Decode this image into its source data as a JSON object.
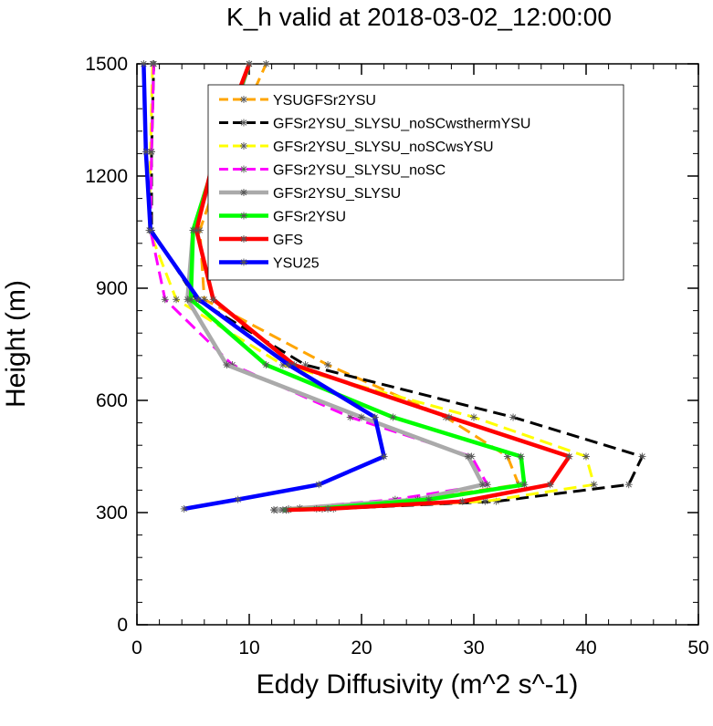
{
  "chart_data": {
    "type": "line",
    "title": "K_h valid at 2018-03-02_12:00:00",
    "xlabel": "Eddy Diffusivity (m^2 s^-1)",
    "ylabel": "Height (m)",
    "xlim": [
      0,
      50
    ],
    "ylim": [
      0,
      1500
    ],
    "x_ticks": [
      "0",
      "10",
      "20",
      "30",
      "40",
      "50"
    ],
    "y_ticks": [
      "0",
      "300",
      "600",
      "900",
      "1200",
      "1500"
    ],
    "grid": false,
    "legend_position": "top-right-inside",
    "series": [
      {
        "name": "YSUGFSr2YSU",
        "color": "#FFA500",
        "dash": "dash",
        "points": [
          [
            13.5,
            307
          ],
          [
            16.5,
            310
          ],
          [
            24,
            330
          ],
          [
            34,
            375
          ],
          [
            33,
            450
          ],
          [
            27.5,
            555
          ],
          [
            17,
            695
          ],
          [
            6,
            870
          ],
          [
            5.6,
            1055
          ],
          [
            8,
            1265
          ],
          [
            11.5,
            1500
          ]
        ]
      },
      {
        "name": "GFSr2YSU_SLYSU_noSCwsthermYSU",
        "color": "#000000",
        "dash": "dash",
        "points": [
          [
            13.3,
            307
          ],
          [
            17.5,
            310
          ],
          [
            32,
            330
          ],
          [
            43.8,
            375
          ],
          [
            45,
            450
          ],
          [
            33.5,
            555
          ],
          [
            15,
            695
          ],
          [
            5.3,
            870
          ],
          [
            1.3,
            1055
          ],
          [
            1.3,
            1265
          ],
          [
            1.5,
            1500
          ]
        ]
      },
      {
        "name": "GFSr2YSU_SLYSU_noSCwsYSU",
        "color": "#FFFF00",
        "dash": "dash",
        "points": [
          [
            12.5,
            307
          ],
          [
            16.5,
            310
          ],
          [
            31,
            330
          ],
          [
            40.7,
            375
          ],
          [
            40,
            450
          ],
          [
            30,
            555
          ],
          [
            13,
            695
          ],
          [
            3.5,
            870
          ],
          [
            1.1,
            1055
          ],
          [
            1.2,
            1265
          ],
          [
            1.4,
            1500
          ]
        ]
      },
      {
        "name": "GFSr2YSU_SLYSU_noSC",
        "color": "#FF00FF",
        "dash": "dash",
        "points": [
          [
            12.2,
            307
          ],
          [
            13.5,
            310
          ],
          [
            23,
            335
          ],
          [
            31.2,
            375
          ],
          [
            29.8,
            450
          ],
          [
            19,
            555
          ],
          [
            8.5,
            695
          ],
          [
            2.5,
            870
          ],
          [
            1.2,
            1055
          ],
          [
            1.3,
            1265
          ],
          [
            1.5,
            1500
          ]
        ]
      },
      {
        "name": "GFSr2YSU_SLYSU",
        "color": "#AAAAAA",
        "dash": "solid",
        "points": [
          [
            12.2,
            307
          ],
          [
            14.5,
            312
          ],
          [
            25,
            335
          ],
          [
            30.8,
            375
          ],
          [
            29.5,
            450
          ],
          [
            20,
            555
          ],
          [
            8,
            695
          ],
          [
            4.5,
            870
          ],
          [
            5,
            1055
          ],
          [
            7.5,
            1265
          ],
          [
            10,
            1500
          ]
        ]
      },
      {
        "name": "GFSr2YSU",
        "color": "#00FF00",
        "dash": "solid",
        "points": [
          [
            13,
            307
          ],
          [
            16,
            310
          ],
          [
            26,
            335
          ],
          [
            34.5,
            375
          ],
          [
            34.2,
            450
          ],
          [
            22.8,
            555
          ],
          [
            11.5,
            695
          ],
          [
            4.8,
            870
          ],
          [
            5,
            1055
          ],
          [
            7.2,
            1265
          ],
          [
            10,
            1500
          ]
        ]
      },
      {
        "name": "GFS",
        "color": "#FF0000",
        "dash": "solid",
        "points": [
          [
            13.3,
            307
          ],
          [
            17,
            310
          ],
          [
            29,
            330
          ],
          [
            36.8,
            375
          ],
          [
            38.5,
            450
          ],
          [
            27.8,
            555
          ],
          [
            14,
            695
          ],
          [
            6.8,
            870
          ],
          [
            5.3,
            1055
          ],
          [
            7,
            1265
          ],
          [
            10,
            1500
          ]
        ]
      },
      {
        "name": "YSU25",
        "color": "#0000FF",
        "dash": "solid",
        "points": [
          [
            4.2,
            310
          ],
          [
            9,
            335
          ],
          [
            16.2,
            375
          ],
          [
            22,
            450
          ],
          [
            21.2,
            555
          ],
          [
            13.5,
            695
          ],
          [
            5.5,
            870
          ],
          [
            1.2,
            1055
          ],
          [
            0.8,
            1265
          ],
          [
            0.6,
            1500
          ]
        ]
      }
    ]
  }
}
